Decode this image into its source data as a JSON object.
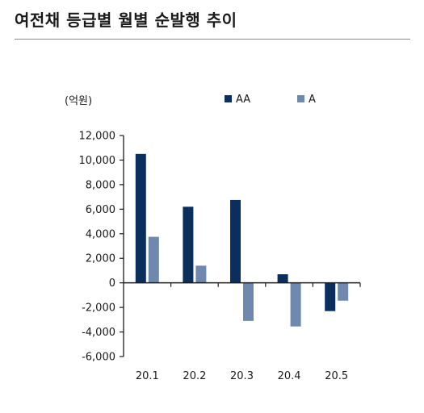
{
  "title": "여전채 등급별 월별 순발행 추이",
  "chart_data": {
    "type": "bar",
    "unit_label": "(억원)",
    "categories": [
      "20.1",
      "20.2",
      "20.3",
      "20.4",
      "20.5"
    ],
    "series": [
      {
        "name": "AA",
        "color": "#0a2f5c",
        "values": [
          10500,
          6200,
          6750,
          700,
          -2300
        ]
      },
      {
        "name": "A",
        "color": "#6f88ad",
        "values": [
          3750,
          1400,
          -3100,
          -3550,
          -1450
        ]
      }
    ],
    "ylim": [
      -6000,
      12000
    ],
    "yticks": [
      12000,
      10000,
      8000,
      6000,
      4000,
      2000,
      0,
      -2000,
      -4000,
      -6000
    ],
    "ytick_labels": [
      "12,000",
      "10,000",
      "8,000",
      "6,000",
      "4,000",
      "2,000",
      "0",
      "-2,000",
      "-4,000",
      "-6,000"
    ],
    "legend_position": "top-right",
    "grid": false
  }
}
